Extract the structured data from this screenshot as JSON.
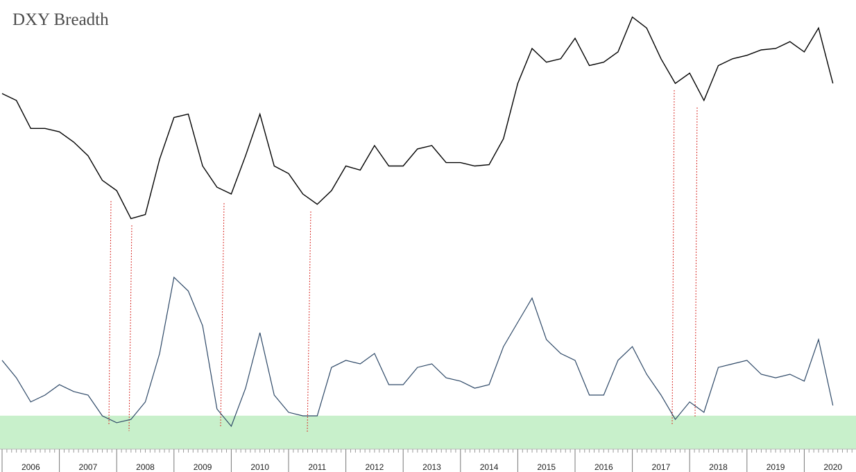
{
  "title": "DXY Breadth",
  "timeline": [
    "2006",
    "2007",
    "2008",
    "2009",
    "2010",
    "2011",
    "2012",
    "2013",
    "2014",
    "2015",
    "2016",
    "2017",
    "2018",
    "2019",
    "2020"
  ],
  "chart_data": [
    {
      "type": "line",
      "color": "#000000",
      "ylim": [
        70,
        105
      ],
      "values": [
        91.3,
        90.3,
        86.2,
        86.2,
        85.7,
        84.2,
        82.2,
        78.6,
        77.1,
        73.0,
        73.6,
        81.7,
        87.8,
        88.3,
        80.7,
        77.6,
        76.6,
        82.2,
        88.3,
        80.7,
        79.6,
        76.6,
        75.1,
        77.1,
        80.7,
        80.1,
        83.7,
        80.7,
        80.7,
        83.2,
        83.7,
        81.2,
        81.2,
        80.7,
        80.9,
        84.7,
        92.8,
        97.9,
        95.9,
        96.4,
        99.4,
        95.4,
        95.9,
        97.4,
        102.5,
        100.9,
        96.4,
        92.8,
        94.3,
        90.3,
        95.4,
        96.4,
        96.9,
        97.7,
        97.9,
        98.9,
        97.4,
        100.9,
        92.8
      ]
    },
    {
      "type": "line",
      "color": "#2c4766",
      "ylim": [
        0,
        100
      ],
      "zone": {
        "from": 0,
        "to": 18,
        "color": "#c8f0cb"
      },
      "values": [
        47.8,
        38.4,
        25.4,
        29.1,
        34.7,
        31.0,
        29.1,
        17.9,
        14.2,
        16.0,
        25.4,
        51.5,
        92.5,
        85.1,
        66.4,
        21.6,
        12.3,
        32.8,
        62.7,
        29.1,
        19.8,
        17.9,
        17.9,
        44.0,
        47.8,
        45.9,
        51.5,
        34.7,
        34.7,
        44.0,
        45.9,
        38.4,
        36.6,
        32.8,
        34.7,
        55.2,
        68.3,
        81.3,
        59.0,
        51.5,
        47.8,
        29.1,
        29.1,
        47.8,
        55.2,
        40.3,
        29.1,
        16.0,
        25.4,
        19.8,
        44.0,
        45.9,
        47.8,
        40.3,
        38.4,
        40.3,
        36.6,
        59.0,
        23.5
      ]
    }
  ]
}
